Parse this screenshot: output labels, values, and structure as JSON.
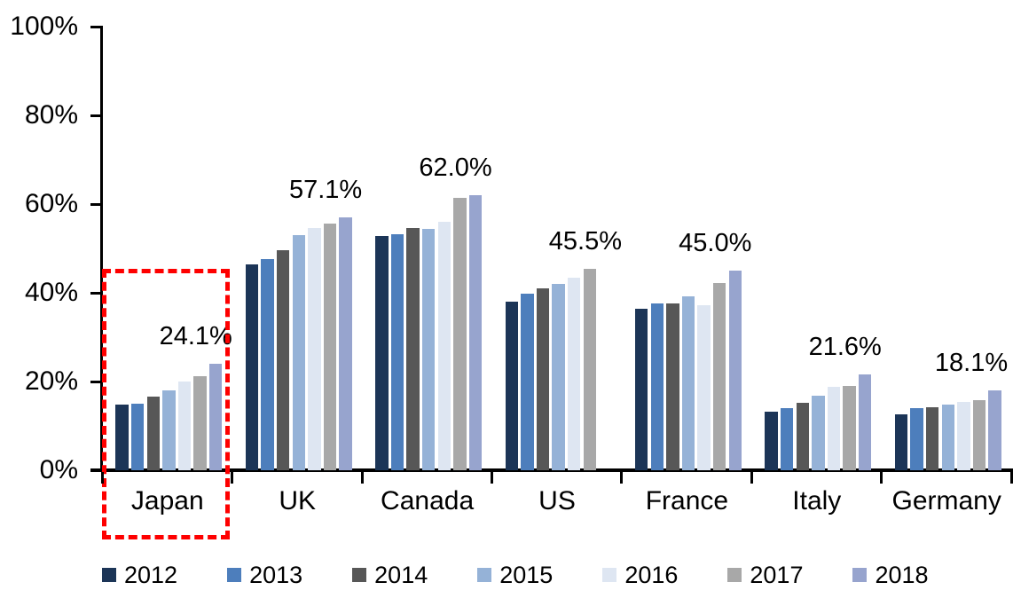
{
  "chart_data": {
    "type": "bar",
    "title": "",
    "categories": [
      "Japan",
      "UK",
      "Canada",
      "US",
      "France",
      "Italy",
      "Germany"
    ],
    "series": [
      {
        "name": "2012",
        "color": "#1c3557",
        "values": [
          14.8,
          46.4,
          52.9,
          38.1,
          36.5,
          13.3,
          12.6
        ]
      },
      {
        "name": "2013",
        "color": "#4d7ebc",
        "values": [
          15.1,
          47.7,
          53.3,
          39.9,
          37.7,
          14.0,
          14.0
        ]
      },
      {
        "name": "2014",
        "color": "#575757",
        "values": [
          16.6,
          49.7,
          54.7,
          41.1,
          37.7,
          15.2,
          14.3
        ]
      },
      {
        "name": "2015",
        "color": "#95b2d7",
        "values": [
          18.0,
          53.1,
          54.5,
          42.1,
          39.3,
          16.8,
          14.8
        ]
      },
      {
        "name": "2016",
        "color": "#dee6f2",
        "values": [
          20.0,
          54.6,
          56.1,
          43.5,
          37.3,
          18.9,
          15.4
        ]
      },
      {
        "name": "2017",
        "color": "#a8a8a8",
        "values": [
          21.2,
          55.7,
          61.5,
          45.5,
          42.2,
          19.1,
          15.9
        ]
      },
      {
        "name": "2018",
        "color": "#97a4ce",
        "values": [
          24.1,
          57.1,
          62.0,
          null,
          45.0,
          21.6,
          18.1
        ]
      }
    ],
    "data_labels": [
      {
        "category": "Japan",
        "text": "24.1%",
        "value": 24.1
      },
      {
        "category": "UK",
        "text": "57.1%",
        "value": 57.1
      },
      {
        "category": "Canada",
        "text": "62.0%",
        "value": 62.0
      },
      {
        "category": "US",
        "text": "45.5%",
        "value": 45.5
      },
      {
        "category": "France",
        "text": "45.0%",
        "value": 45.0
      },
      {
        "category": "Italy",
        "text": "21.6%",
        "value": 21.6
      },
      {
        "category": "Germany",
        "text": "18.1%",
        "value": 18.1
      }
    ],
    "y_axis": {
      "tick_labels": [
        "100%",
        "80%",
        "60%",
        "40%",
        "20%",
        "0%"
      ],
      "tick_values": [
        100,
        80,
        60,
        40,
        20,
        0
      ],
      "min": 0,
      "max": 100,
      "grid": false
    },
    "legend": {
      "position": "bottom",
      "entries": [
        "2012",
        "2013",
        "2014",
        "2015",
        "2016",
        "2017",
        "2018"
      ]
    },
    "highlight_box": {
      "category": "Japan",
      "border_color": "#fe0000",
      "style": "dashed"
    },
    "axis_color": "#000000",
    "background_color": "#ffffff"
  }
}
